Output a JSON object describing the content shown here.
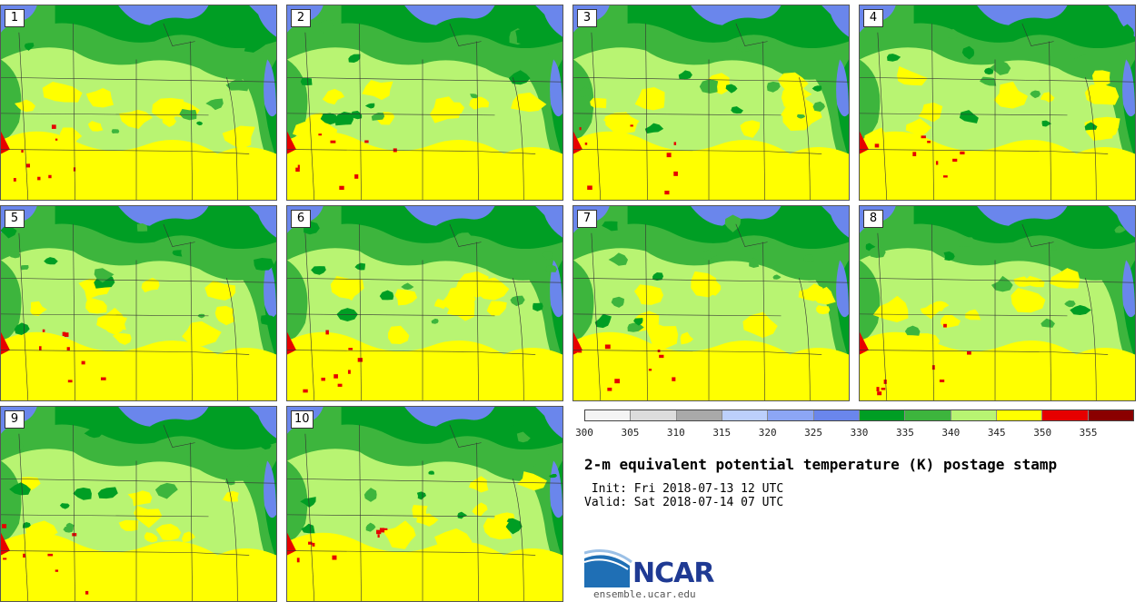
{
  "panels": [
    {
      "label": "1"
    },
    {
      "label": "2"
    },
    {
      "label": "3"
    },
    {
      "label": "4"
    },
    {
      "label": "5"
    },
    {
      "label": "6"
    },
    {
      "label": "7"
    },
    {
      "label": "8"
    },
    {
      "label": "9"
    },
    {
      "label": "10"
    }
  ],
  "colorbar": {
    "colors": [
      "#f4f4f4",
      "#dcdcdc",
      "#a9a9a9",
      "#bcd0fc",
      "#8ca6f5",
      "#6a86ec",
      "#009e24",
      "#3db53d",
      "#b8f472",
      "#ffff00",
      "#e60000",
      "#8a0000"
    ],
    "ticks": [
      "300",
      "305",
      "310",
      "315",
      "320",
      "325",
      "330",
      "335",
      "340",
      "345",
      "350",
      "355"
    ]
  },
  "title": "2-m equivalent potential temperature (K) postage stamp",
  "init": " Init: Fri 2018-07-13 12 UTC",
  "valid": "Valid: Sat 2018-07-14 07 UTC",
  "logo": {
    "text": "NCAR",
    "url": "ensemble.ucar.edu"
  }
}
